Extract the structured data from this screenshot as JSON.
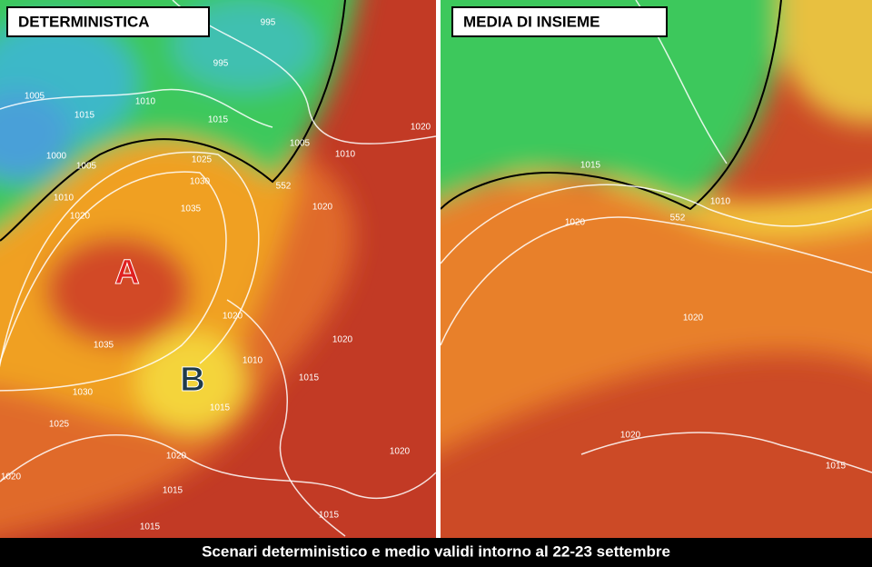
{
  "panels": [
    {
      "title": "DETERMINISTICA",
      "isobar_labels": [
        "995",
        "995",
        "1005",
        "1010",
        "1015",
        "1015",
        "1005",
        "1000",
        "1005",
        "1010",
        "1025",
        "1020",
        "1030",
        "552",
        "1010",
        "1020",
        "1035",
        "1020",
        "1020",
        "1035",
        "1020",
        "1010",
        "1015",
        "1030",
        "1015",
        "1025",
        "1020",
        "1020",
        "1020",
        "1015",
        "1015",
        "1015"
      ],
      "pressure_centers": [
        "A",
        "B"
      ]
    },
    {
      "title": "MEDIA DI INSIEME",
      "isobar_labels": [
        "1015",
        "1020",
        "1010",
        "552",
        "1020",
        "1020",
        "1015"
      ]
    }
  ],
  "caption": "Scenari deterministico e medio validi intorno al 22-23 settembre"
}
